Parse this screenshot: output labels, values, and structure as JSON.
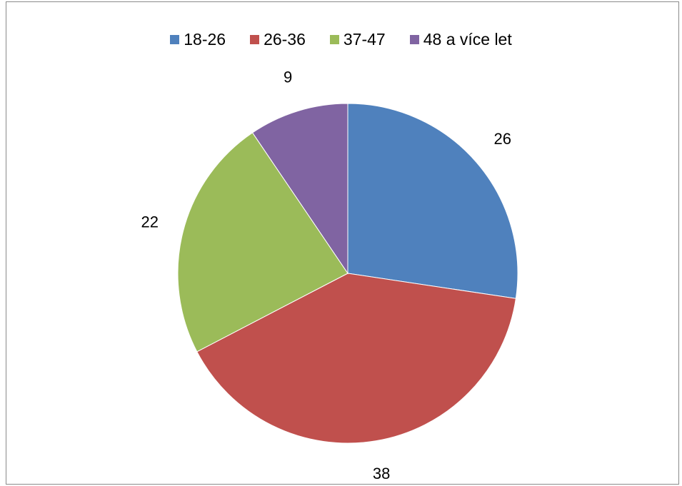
{
  "chart_data": {
    "type": "pie",
    "title": "",
    "categories": [
      "18-26",
      "26-36",
      "37-47",
      "48 a více let"
    ],
    "values": [
      26,
      38,
      22,
      9
    ],
    "data_labels": [
      "26",
      "38",
      "22",
      "9"
    ],
    "colors": [
      "#4F81BD",
      "#C0504D",
      "#9BBB59",
      "#8064A2"
    ],
    "legend_position": "top",
    "start": "12 o'clock, clockwise"
  }
}
